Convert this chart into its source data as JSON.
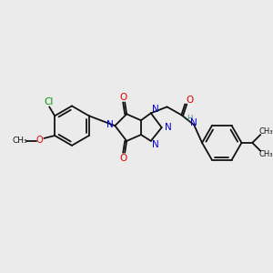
{
  "bg": "#ebebeb",
  "bc": "#111111",
  "nc": "#0000cc",
  "oc": "#dd0000",
  "clc": "#009900",
  "hc": "#3a8888",
  "lw": 1.3,
  "figsize": [
    3.0,
    3.0
  ],
  "dpi": 100,
  "xlim": [
    0,
    300
  ],
  "ylim": [
    0,
    300
  ]
}
